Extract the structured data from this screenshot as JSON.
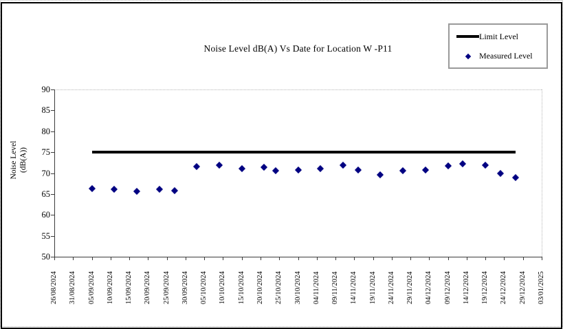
{
  "chart": {
    "title": "Noise Level dB(A) Vs Date for Location W -P11",
    "legend": {
      "limit_label": "Limit Level",
      "measured_label": "Measured Level"
    },
    "y_axis": {
      "title_line1": "Noise Level",
      "title_line2": "(dB(A))",
      "min": 50,
      "max": 90,
      "step": 5
    }
  },
  "chart_data": {
    "type": "scatter",
    "title": "Noise Level dB(A) Vs Date for Location W -P11",
    "xlabel": "Date",
    "ylabel": "Noise Level (dB(A))",
    "ylim": [
      50,
      90
    ],
    "y_tick_step": 5,
    "grid": false,
    "legend_position": "top-right",
    "x_range": [
      "26/08/2024",
      "03/01/2025"
    ],
    "x_tick_labels": [
      "26/08/2024",
      "31/08/2024",
      "05/09/2024",
      "10/09/2024",
      "15/09/2024",
      "20/09/2024",
      "25/09/2024",
      "30/09/2024",
      "05/10/2024",
      "10/10/2024",
      "15/10/2024",
      "20/10/2024",
      "25/10/2024",
      "30/10/2024",
      "04/11/2024",
      "09/11/2024",
      "14/11/2024",
      "19/11/2024",
      "24/11/2024",
      "29/11/2024",
      "04/12/2024",
      "09/12/2024",
      "14/12/2024",
      "19/12/2024",
      "24/12/2024",
      "29/12/2024",
      "03/01/2025"
    ],
    "series": [
      {
        "name": "Limit Level",
        "type": "line",
        "color": "#000000",
        "value": 75,
        "x_start": "05/09/2024",
        "x_end": "27/12/2024"
      },
      {
        "name": "Measured Level",
        "type": "scatter",
        "marker": "diamond",
        "color": "#000082",
        "points": [
          [
            "05/09/2024",
            66.3
          ],
          [
            "11/09/2024",
            66.1
          ],
          [
            "17/09/2024",
            65.7
          ],
          [
            "23/09/2024",
            66.1
          ],
          [
            "27/09/2024",
            65.8
          ],
          [
            "03/10/2024",
            71.5
          ],
          [
            "09/10/2024",
            71.9
          ],
          [
            "15/10/2024",
            71.0
          ],
          [
            "21/10/2024",
            71.4
          ],
          [
            "24/10/2024",
            70.5
          ],
          [
            "30/10/2024",
            70.8
          ],
          [
            "05/11/2024",
            71.1
          ],
          [
            "11/11/2024",
            71.9
          ],
          [
            "15/11/2024",
            70.7
          ],
          [
            "21/11/2024",
            69.6
          ],
          [
            "27/11/2024",
            70.5
          ],
          [
            "03/12/2024",
            70.7
          ],
          [
            "09/12/2024",
            71.8
          ],
          [
            "13/12/2024",
            72.3
          ],
          [
            "19/12/2024",
            71.9
          ],
          [
            "23/12/2024",
            70.0
          ],
          [
            "27/12/2024",
            69.0
          ]
        ]
      }
    ]
  }
}
